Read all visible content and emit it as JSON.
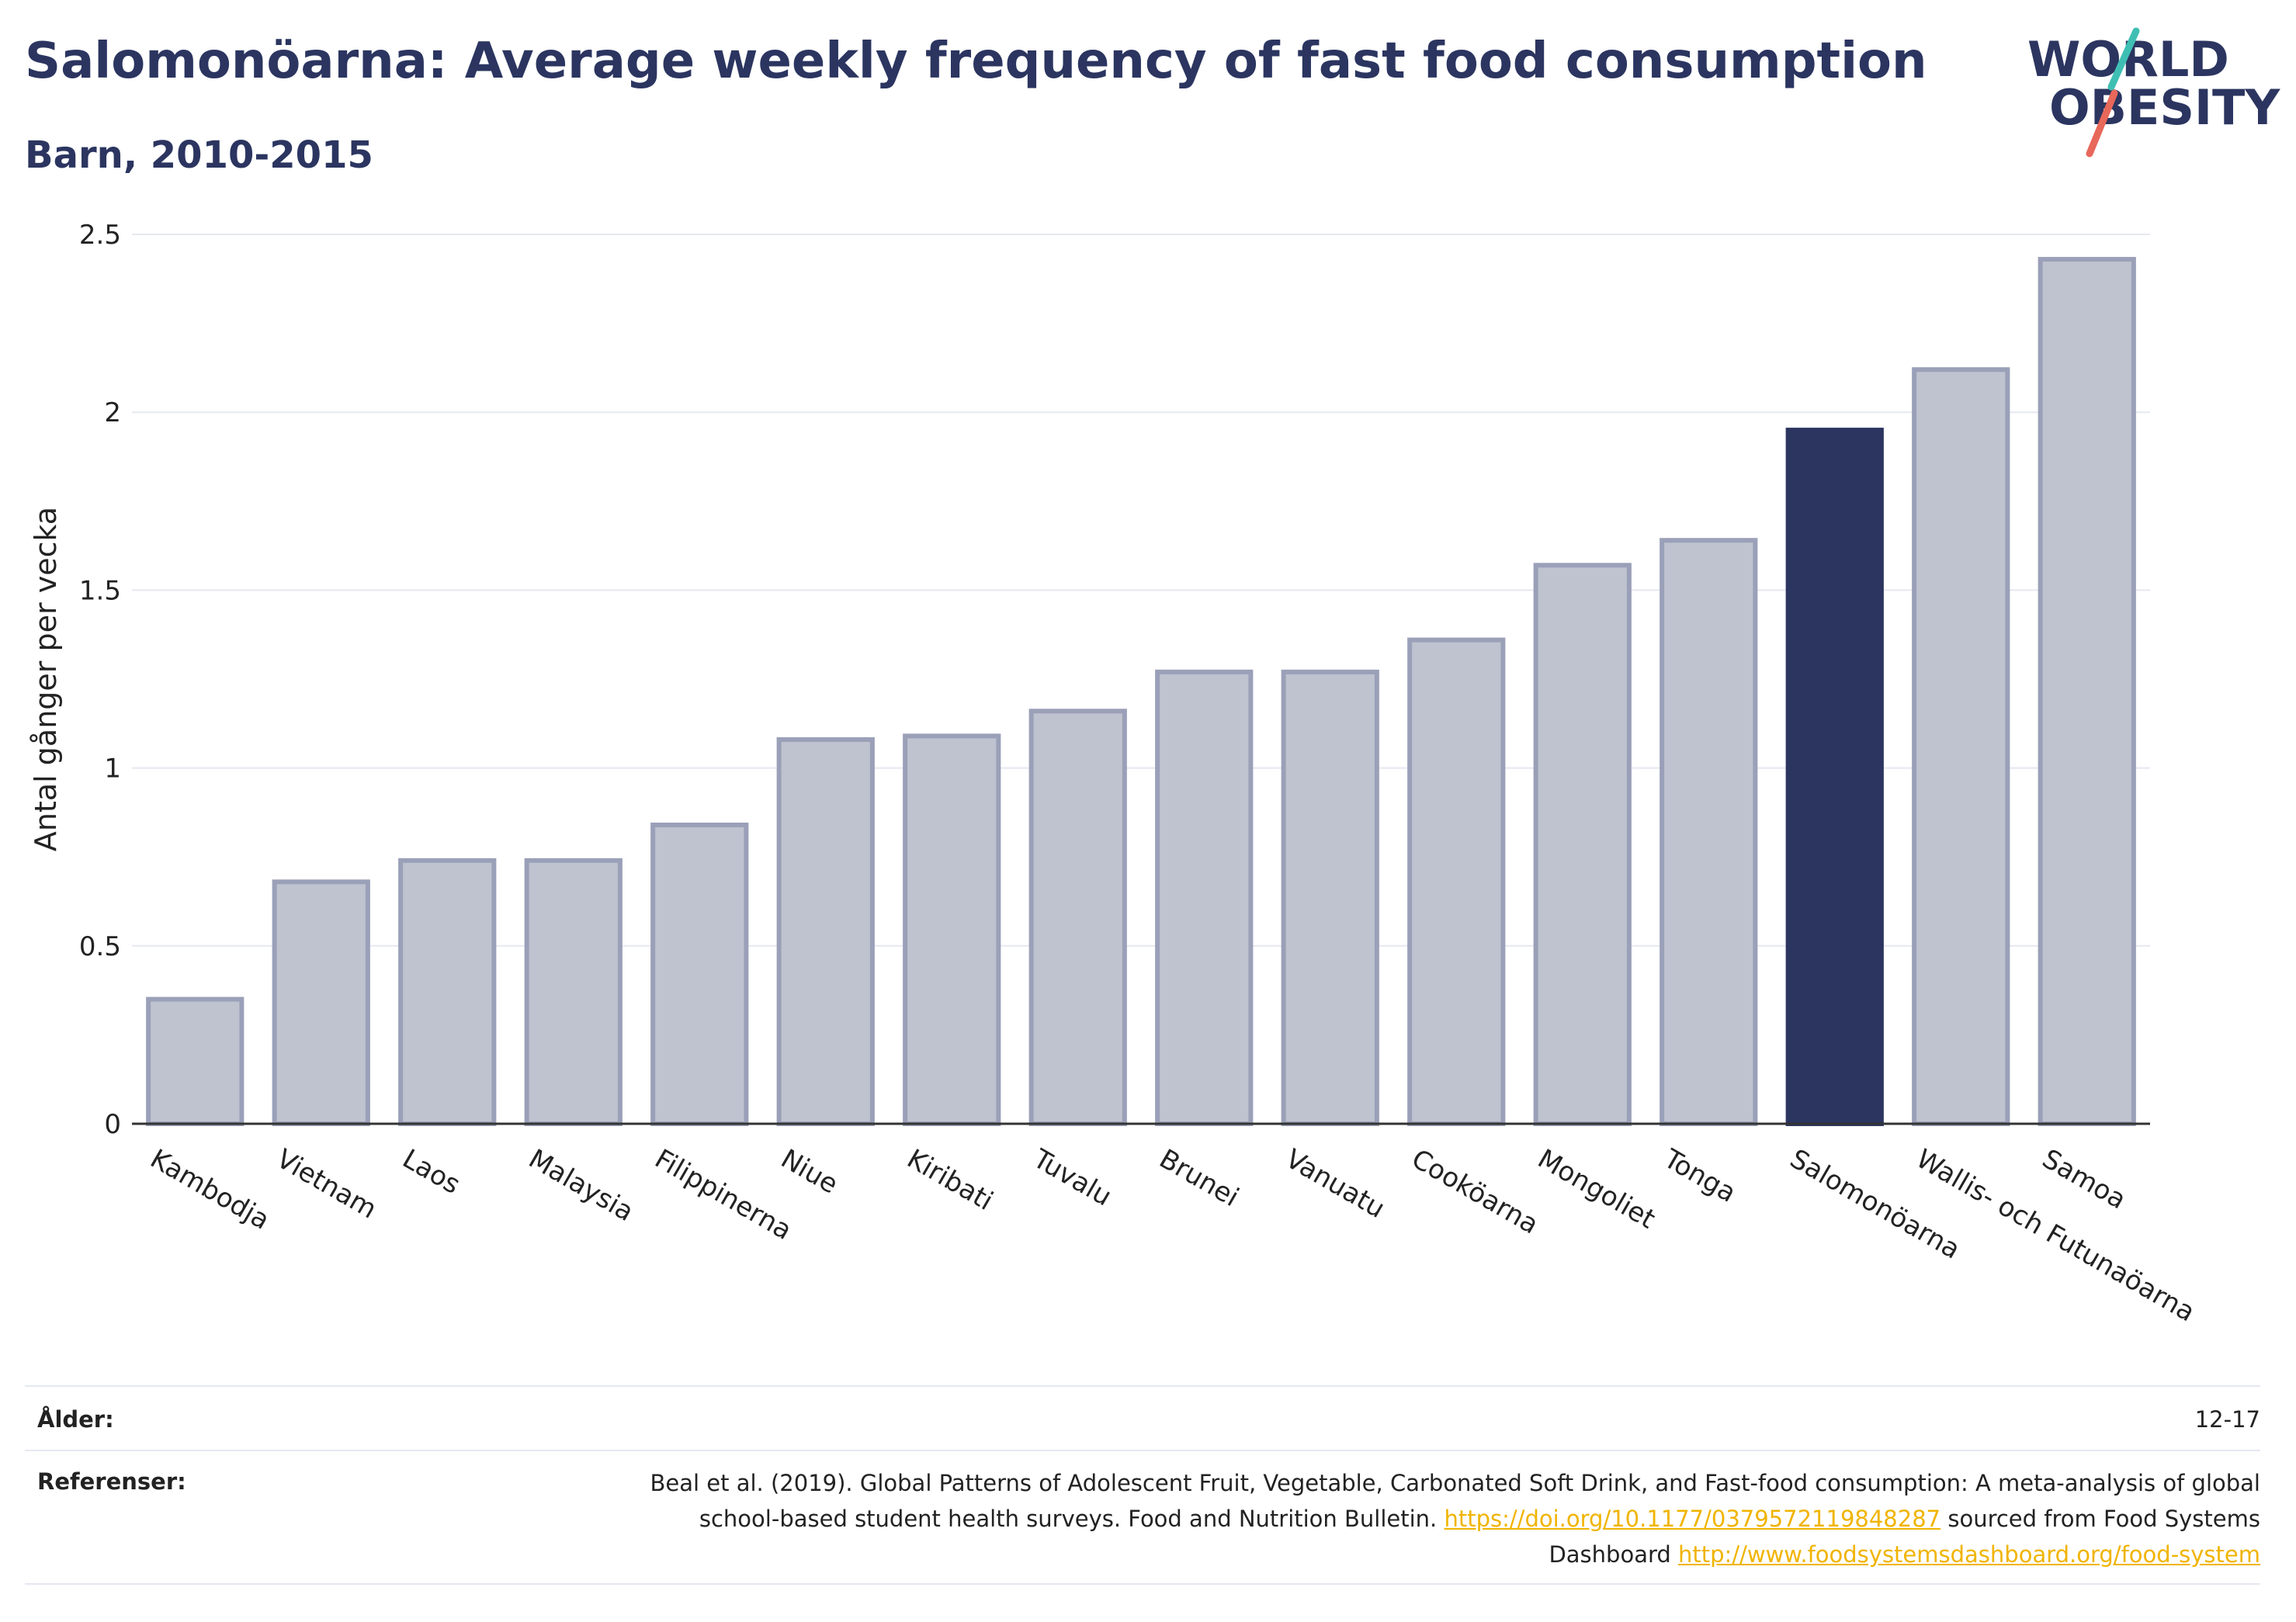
{
  "title": "Salomonöarna: Average weekly frequency of fast food consumption",
  "subtitle": "Barn, 2010-2015",
  "logo": {
    "line1": "WORLD",
    "line2": "OBESITY",
    "slash_color_top": "#3fbfb4",
    "slash_color_bottom": "#e8685a"
  },
  "chart_data": {
    "type": "bar",
    "ylabel": "Antal gånger per vecka",
    "xlabel": "",
    "ylim": [
      0,
      2.5
    ],
    "yticks": [
      0,
      0.5,
      1,
      1.5,
      2,
      2.5
    ],
    "ytick_labels": [
      "0",
      "0.5",
      "1",
      "1.5",
      "2",
      "2.5"
    ],
    "grid": true,
    "highlight": "Salomonöarna",
    "colors": {
      "bar": "#bfc3cf",
      "bar_border": "#9aa0b8",
      "highlight": "#2b3560"
    },
    "categories": [
      "Kambodja",
      "Vietnam",
      "Laos",
      "Malaysia",
      "Filippinerna",
      "Niue",
      "Kiribati",
      "Tuvalu",
      "Brunei",
      "Vanuatu",
      "Cooköarna",
      "Mongoliet",
      "Tonga",
      "Salomonöarna",
      "Wallis- och Futunaöarna",
      "Samoa"
    ],
    "values": [
      0.35,
      0.68,
      0.74,
      0.74,
      0.84,
      1.08,
      1.09,
      1.16,
      1.27,
      1.27,
      1.36,
      1.57,
      1.64,
      1.95,
      2.12,
      2.43
    ]
  },
  "footer": {
    "age_label": "Ålder:",
    "age_value": "12-17",
    "ref_label": "Referenser:",
    "ref_text_1": "Beal et al. (2019). Global Patterns of Adolescent Fruit, Vegetable, Carbonated Soft Drink, and Fast-food consumption: A meta-analysis of global school-based student health surveys. Food and Nutrition Bulletin.",
    "ref_link_1": "https://doi.org/10.1177/0379572119848287",
    "ref_text_2": "sourced from Food Systems Dashboard",
    "ref_link_2": "http://www.foodsystemsdashboard.org/food-system"
  }
}
